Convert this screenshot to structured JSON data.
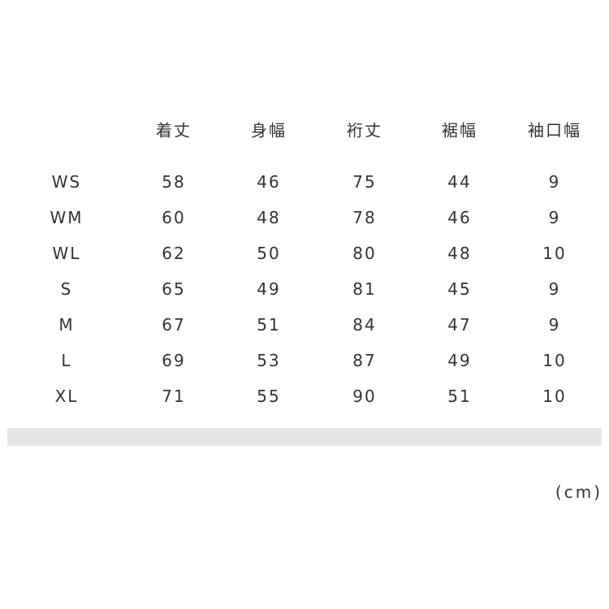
{
  "table": {
    "header": [
      "着丈",
      "身幅",
      "裄丈",
      "裾幅",
      "袖口幅"
    ],
    "rows": [
      [
        "WS",
        "58",
        "46",
        "75",
        "44",
        "9"
      ],
      [
        "WM",
        "60",
        "48",
        "78",
        "46",
        "9"
      ],
      [
        "WL",
        "62",
        "50",
        "80",
        "48",
        "10"
      ],
      [
        "S",
        "65",
        "49",
        "81",
        "45",
        "9"
      ],
      [
        "M",
        "67",
        "51",
        "84",
        "47",
        "9"
      ],
      [
        "L",
        "69",
        "53",
        "87",
        "49",
        "10"
      ],
      [
        "XL",
        "71",
        "55",
        "90",
        "51",
        "10"
      ]
    ]
  },
  "unit": "(cm)"
}
